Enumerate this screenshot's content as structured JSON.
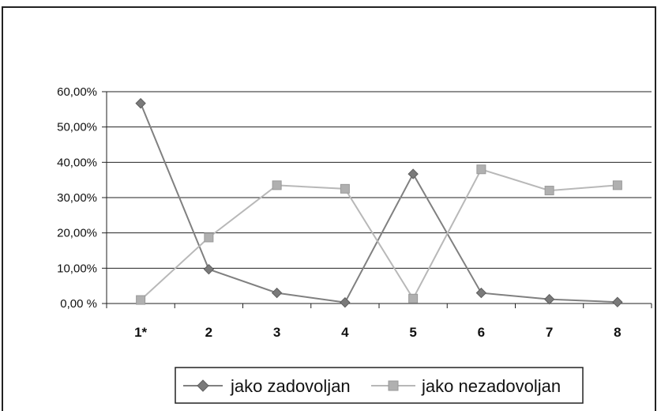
{
  "chart_data": {
    "type": "line",
    "categories": [
      "1*",
      "2",
      "3",
      "4",
      "5",
      "6",
      "7",
      "8"
    ],
    "y_ticks": [
      "0,00 %",
      "10,00%",
      "20,00%",
      "30,00%",
      "40,00%",
      "50,00%",
      "60,00%"
    ],
    "ylim": [
      0,
      60
    ],
    "grid": true,
    "legend_position": "bottom",
    "series": [
      {
        "name": "jako zadovoljan",
        "color": "#808080",
        "marker": "diamond",
        "values": [
          56.7,
          9.7,
          3.0,
          0.3,
          36.7,
          3.0,
          1.2,
          0.4
        ]
      },
      {
        "name": "jako nezadovoljan",
        "color": "#b8b8b8",
        "marker": "square",
        "values": [
          1.0,
          18.7,
          33.5,
          32.5,
          1.4,
          38.0,
          32.0,
          33.5
        ]
      }
    ]
  }
}
